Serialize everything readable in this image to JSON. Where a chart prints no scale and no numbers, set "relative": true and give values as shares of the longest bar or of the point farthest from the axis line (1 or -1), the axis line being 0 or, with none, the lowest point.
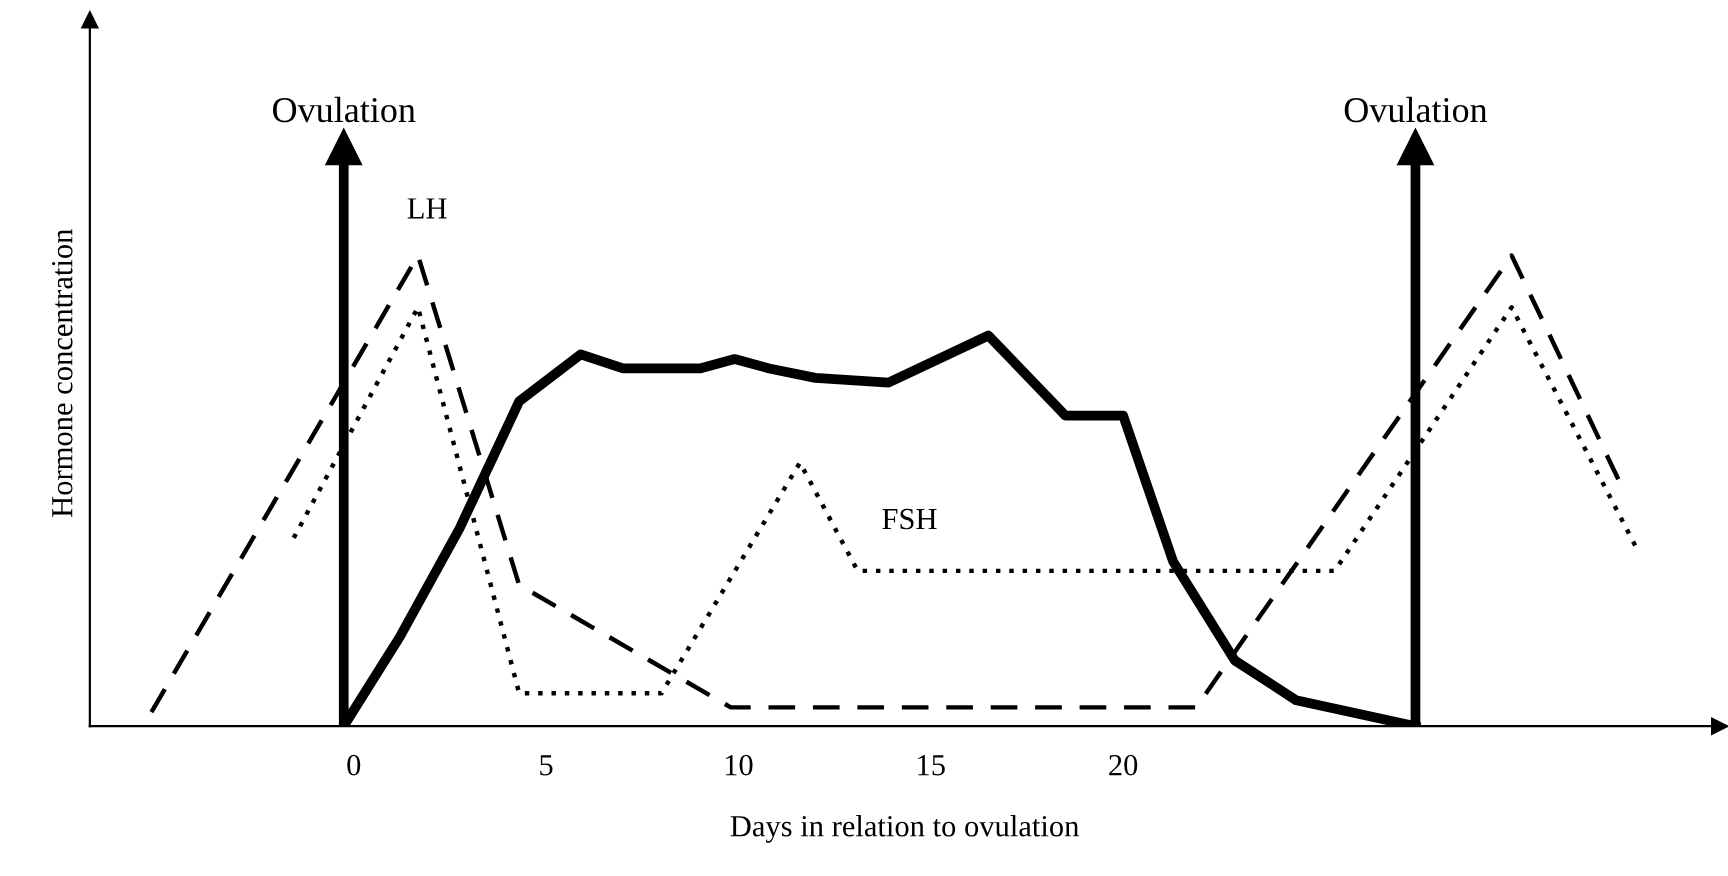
{
  "chart_data": {
    "type": "line",
    "relative": true,
    "xlabel": "Days in relation to ovulation",
    "ylabel": "Hormone concentration",
    "xlim": [
      -6.86,
      35.5
    ],
    "xticks": [
      0,
      5,
      10,
      15,
      20
    ],
    "grid": false,
    "marker": "none",
    "series": [
      {
        "color": "#000000",
        "line_style": "dashed",
        "x": [
          -5.26,
          1.67,
          4.3,
          9.8,
          21.9,
          30.1,
          32.9
        ],
        "values": [
          0.03,
          1.0,
          0.3,
          0.04,
          0.04,
          1.0,
          0.52
        ]
      },
      {
        "color": "#000000",
        "line_style": "dotted",
        "x": [
          -1.56,
          1.67,
          4.3,
          8.0,
          11.6,
          13.1,
          25.5,
          30.1,
          33.4
        ],
        "values": [
          0.4,
          0.89,
          0.07,
          0.07,
          0.56,
          0.33,
          0.33,
          0.89,
          0.37
        ]
      },
      {
        "color": "#000000",
        "line_style": "solid",
        "x": [
          -0.26,
          1.2,
          2.75,
          4.3,
          5.9,
          7.0,
          9.0,
          9.9,
          10.8,
          12.0,
          13.9,
          16.5,
          18.5,
          20.0,
          21.3,
          22.9,
          24.5,
          27.6
        ],
        "values": [
          0,
          0.19,
          0.42,
          0.69,
          0.79,
          0.76,
          0.76,
          0.78,
          0.76,
          0.74,
          0.73,
          0.83,
          0.66,
          0.66,
          0.35,
          0.14,
          0.055,
          0
        ]
      }
    ],
    "ref_lines": [
      {
        "axis": "x",
        "value": -0.26,
        "label": "Ovulation",
        "color": "#000000"
      },
      {
        "axis": "x",
        "value": 27.6,
        "label": "Ovulation",
        "color": "#000000"
      }
    ],
    "annotations": [
      "LH",
      "FSH"
    ]
  }
}
